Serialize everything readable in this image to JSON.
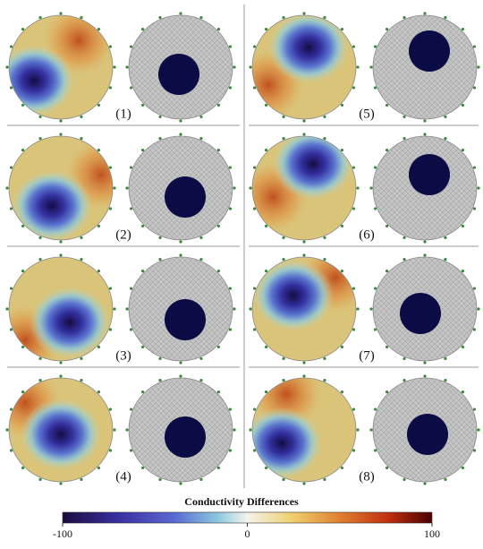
{
  "panels": {
    "labels": [
      "(1)",
      "(2)",
      "(3)",
      "(4)",
      "(5)",
      "(6)",
      "(7)",
      "(8)"
    ]
  },
  "colorbar": {
    "title": "Conductivity Differences",
    "ticks": [
      -100,
      0,
      100
    ]
  }
}
